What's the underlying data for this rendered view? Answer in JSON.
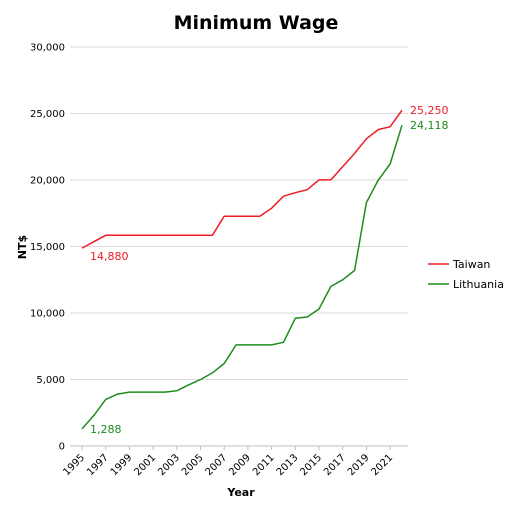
{
  "chart_data": {
    "type": "line",
    "title": "Minimum Wage",
    "xlabel": "Year",
    "ylabel": "NT$",
    "xlim": [
      1995,
      2022
    ],
    "ylim": [
      0,
      30000
    ],
    "y_ticks": [
      {
        "value": 0,
        "label": "0"
      },
      {
        "value": 5000,
        "label": "5,000"
      },
      {
        "value": 10000,
        "label": "10,000"
      },
      {
        "value": 15000,
        "label": "15,000"
      },
      {
        "value": 20000,
        "label": "20,000"
      },
      {
        "value": 25000,
        "label": "25,000"
      },
      {
        "value": 30000,
        "label": "30,000"
      }
    ],
    "x_ticks": [
      {
        "value": 1995,
        "label": "1995"
      },
      {
        "value": 1997,
        "label": "1997"
      },
      {
        "value": 1999,
        "label": "1999"
      },
      {
        "value": 2001,
        "label": "2001"
      },
      {
        "value": 2003,
        "label": "2003"
      },
      {
        "value": 2005,
        "label": "2005"
      },
      {
        "value": 2007,
        "label": "2007"
      },
      {
        "value": 2009,
        "label": "2009"
      },
      {
        "value": 2011,
        "label": "2011"
      },
      {
        "value": 2013,
        "label": "2013"
      },
      {
        "value": 2015,
        "label": "2015"
      },
      {
        "value": 2017,
        "label": "2017"
      },
      {
        "value": 2019,
        "label": "2019"
      },
      {
        "value": 2021,
        "label": "2021"
      }
    ],
    "grid": "horizontal",
    "legend_position": "right",
    "x": [
      1995,
      1996,
      1997,
      1998,
      1999,
      2000,
      2001,
      2002,
      2003,
      2004,
      2005,
      2006,
      2007,
      2008,
      2009,
      2010,
      2011,
      2012,
      2013,
      2014,
      2015,
      2016,
      2017,
      2018,
      2019,
      2020,
      2021,
      2022
    ],
    "series": [
      {
        "name": "Taiwan",
        "color": "#ee1c25",
        "values": [
          14880,
          15360,
          15840,
          15840,
          15840,
          15840,
          15840,
          15840,
          15840,
          15840,
          15840,
          15840,
          17280,
          17280,
          17280,
          17280,
          17880,
          18780,
          19047,
          19273,
          20008,
          20008,
          21009,
          22000,
          23100,
          23800,
          24000,
          25250
        ],
        "labels": [
          {
            "index": 0,
            "text": "14,880",
            "place": "below-right"
          },
          {
            "index": 27,
            "text": "25,250",
            "place": "right"
          }
        ]
      },
      {
        "name": "Lithuania",
        "color": "#1e8c1e",
        "values": [
          1288,
          2300,
          3500,
          3900,
          4050,
          4050,
          4050,
          4050,
          4150,
          4600,
          5000,
          5500,
          6200,
          7600,
          7600,
          7600,
          7600,
          7800,
          9600,
          9700,
          10300,
          12000,
          12500,
          13200,
          18300,
          20000,
          21200,
          24118
        ],
        "labels": [
          {
            "index": 0,
            "text": "1,288",
            "place": "right"
          },
          {
            "index": 27,
            "text": "24,118",
            "place": "right"
          }
        ]
      }
    ]
  }
}
